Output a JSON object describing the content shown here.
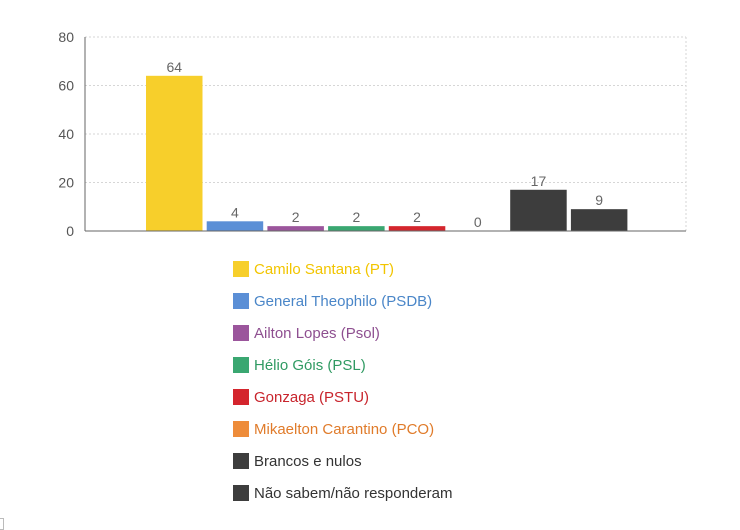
{
  "chart_data": {
    "type": "bar",
    "yticks": [
      "0",
      "20",
      "40",
      "60",
      "80"
    ],
    "ylim": [
      0,
      80
    ],
    "grid": true,
    "legend_position": "bottom",
    "series": [
      {
        "name": "Camilo Santana (PT)",
        "value": 64,
        "color": "#f7cf2b",
        "label_color": "#f2c500"
      },
      {
        "name": "General Theophilo (PSDB)",
        "value": 4,
        "color": "#5b8fd6",
        "label_color": "#4a86c8"
      },
      {
        "name": "Ailton Lopes (Psol)",
        "value": 2,
        "color": "#9b559c",
        "label_color": "#8e4f90"
      },
      {
        "name": "Hélio Góis (PSL)",
        "value": 2,
        "color": "#3aa771",
        "label_color": "#2f9a62"
      },
      {
        "name": "Gonzaga (PSTU)",
        "value": 2,
        "color": "#d4252d",
        "label_color": "#c8242c"
      },
      {
        "name": "Mikaelton Carantino (PCO)",
        "value": 0,
        "color": "#ee8c3a",
        "label_color": "#e07b2a"
      },
      {
        "name": "Brancos e nulos",
        "value": 17,
        "color": "#3d3d3d",
        "label_color": "#333333"
      },
      {
        "name": "Não sabem/não responderam",
        "value": 9,
        "color": "#3d3d3d",
        "label_color": "#333333"
      }
    ]
  }
}
